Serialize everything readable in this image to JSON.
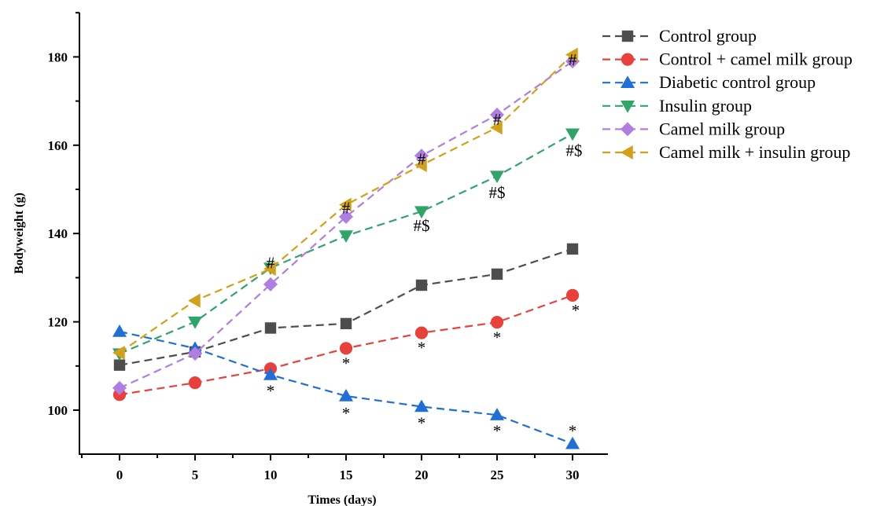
{
  "chart_data": {
    "type": "line",
    "xlabel": "Times (days)",
    "ylabel": "Bodyweight (g)",
    "xlim": [
      -5,
      32
    ],
    "ylim": [
      90,
      190
    ],
    "x_ticks": [
      0,
      5,
      10,
      15,
      20,
      25,
      30
    ],
    "y_ticks": [
      100,
      120,
      140,
      160,
      180
    ],
    "legend_position": "top-right",
    "grid": false,
    "series": [
      {
        "name": "Control group",
        "color": "#4d4d4d",
        "marker": "square",
        "x": [
          0,
          5,
          10,
          15,
          20,
          25,
          30
        ],
        "y": [
          110.2,
          113.2,
          118.6,
          119.6,
          128.3,
          130.8,
          136.5
        ]
      },
      {
        "name": "Control + camel milk group",
        "color": "#e8413b",
        "marker": "circle",
        "x": [
          0,
          5,
          10,
          15,
          20,
          25,
          30
        ],
        "y": [
          103.5,
          106.2,
          109.4,
          114.0,
          117.5,
          119.9,
          126.0
        ]
      },
      {
        "name": "Diabetic control group",
        "color": "#1f6fd6",
        "marker": "triangle-up",
        "x": [
          0,
          5,
          10,
          15,
          20,
          25,
          30
        ],
        "y": [
          117.8,
          114.0,
          108.0,
          103.2,
          100.8,
          98.9,
          92.4
        ]
      },
      {
        "name": "Insulin group",
        "color": "#2fa56a",
        "marker": "triangle-down",
        "x": [
          0,
          5,
          10,
          15,
          20,
          25,
          30
        ],
        "y": [
          112.8,
          120.0,
          132.2,
          139.5,
          145.0,
          153.0,
          162.6
        ]
      },
      {
        "name": "Camel milk group",
        "color": "#b07ee0",
        "marker": "diamond",
        "x": [
          0,
          5,
          10,
          15,
          20,
          25,
          30
        ],
        "y": [
          105.0,
          112.8,
          128.5,
          143.8,
          157.6,
          166.9,
          179.0
        ]
      },
      {
        "name": "Camel milk + insulin group",
        "color": "#d4a017",
        "marker": "triangle-left",
        "x": [
          0,
          5,
          10,
          15,
          20,
          25,
          30
        ],
        "y": [
          113.0,
          124.8,
          132.0,
          146.5,
          155.5,
          164.0,
          180.5
        ]
      }
    ],
    "annotations": [
      {
        "text": "*",
        "x": 10,
        "y": 104.5
      },
      {
        "text": "*",
        "x": 15,
        "y": 99.5
      },
      {
        "text": "*",
        "x": 20,
        "y": 97.2
      },
      {
        "text": "*",
        "x": 25,
        "y": 95.5
      },
      {
        "text": "*",
        "x": 30,
        "y": 95.5
      },
      {
        "text": "*",
        "x": 15,
        "y": 110.8
      },
      {
        "text": "*",
        "x": 20,
        "y": 114.3
      },
      {
        "text": "*",
        "x": 25,
        "y": 116.6
      },
      {
        "text": "*",
        "x": 30.2,
        "y": 122.8
      },
      {
        "text": "#",
        "x": 10,
        "y": 133.5
      },
      {
        "text": "#",
        "x": 15,
        "y": 146.0
      },
      {
        "text": "#",
        "x": 20,
        "y": 157.0
      },
      {
        "text": "#",
        "x": 25,
        "y": 166.0
      },
      {
        "text": "#",
        "x": 30,
        "y": 179.5
      },
      {
        "text": "#$",
        "x": 20,
        "y": 142.0
      },
      {
        "text": "#$",
        "x": 25,
        "y": 149.5
      },
      {
        "text": "#$",
        "x": 30.1,
        "y": 159.0
      }
    ]
  }
}
